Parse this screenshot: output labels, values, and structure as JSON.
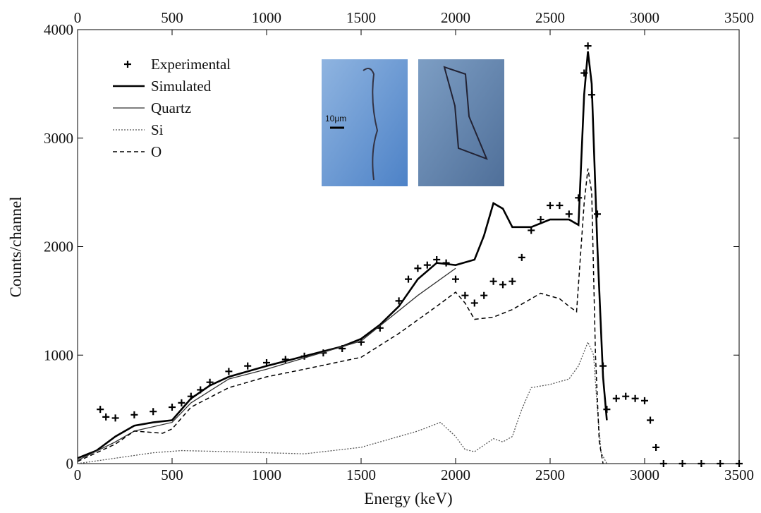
{
  "chart_data": {
    "type": "line",
    "xlabel": "Energy (keV)",
    "ylabel": "Counts/channel",
    "xlim": [
      0,
      3500
    ],
    "ylim": [
      0,
      4000
    ],
    "xticks": [
      0,
      500,
      1000,
      1500,
      2000,
      2500,
      3000,
      3500
    ],
    "yticks": [
      0,
      1000,
      2000,
      3000,
      4000
    ],
    "inset_scale_label": "10µm",
    "series": [
      {
        "name": "Experimental",
        "style": "marker",
        "color": "#000000",
        "x": [
          120,
          150,
          200,
          300,
          400,
          500,
          550,
          600,
          650,
          700,
          800,
          900,
          1000,
          1100,
          1200,
          1300,
          1400,
          1500,
          1600,
          1700,
          1750,
          1800,
          1850,
          1900,
          1950,
          2000,
          2050,
          2100,
          2150,
          2200,
          2250,
          2300,
          2350,
          2400,
          2450,
          2500,
          2550,
          2600,
          2650,
          2680,
          2700,
          2720,
          2750,
          2780,
          2800,
          2850,
          2900,
          2950,
          3000,
          3030,
          3060,
          3100,
          3200,
          3300,
          3400,
          3500
        ],
        "values": [
          500,
          430,
          420,
          450,
          480,
          520,
          560,
          620,
          680,
          750,
          850,
          900,
          930,
          960,
          990,
          1020,
          1060,
          1120,
          1250,
          1500,
          1700,
          1800,
          1830,
          1880,
          1850,
          1700,
          1550,
          1480,
          1550,
          1680,
          1650,
          1680,
          1900,
          2150,
          2250,
          2380,
          2380,
          2300,
          2450,
          3600,
          3850,
          3400,
          2300,
          900,
          500,
          600,
          620,
          600,
          580,
          400,
          150,
          0,
          0,
          0,
          0,
          0
        ]
      },
      {
        "name": "Simulated",
        "style": "thick",
        "color": "#000000",
        "x": [
          0,
          100,
          200,
          300,
          400,
          500,
          600,
          700,
          800,
          1000,
          1200,
          1400,
          1500,
          1600,
          1700,
          1800,
          1900,
          2000,
          2100,
          2150,
          2200,
          2250,
          2300,
          2400,
          2500,
          2600,
          2650,
          2680,
          2700,
          2720,
          2750,
          2780,
          2800
        ],
        "values": [
          50,
          120,
          250,
          350,
          380,
          400,
          600,
          720,
          800,
          900,
          990,
          1080,
          1150,
          1280,
          1450,
          1700,
          1850,
          1830,
          1880,
          2100,
          2400,
          2350,
          2180,
          2180,
          2250,
          2250,
          2200,
          3400,
          3800,
          3500,
          2000,
          800,
          400
        ]
      },
      {
        "name": "Quartz",
        "style": "solid",
        "color": "#333333",
        "x": [
          0,
          200,
          300,
          500,
          600,
          800,
          1000,
          1500,
          1800,
          2000
        ],
        "values": [
          30,
          200,
          300,
          380,
          560,
          780,
          870,
          1130,
          1550,
          1800
        ]
      },
      {
        "name": "Si",
        "style": "dotted",
        "color": "#555555",
        "x": [
          0,
          200,
          400,
          550,
          800,
          1200,
          1500,
          1800,
          1920,
          2000,
          2050,
          2100,
          2200,
          2250,
          2300,
          2350,
          2400,
          2500,
          2600,
          2650,
          2700,
          2730,
          2750,
          2770,
          2800
        ],
        "values": [
          0,
          50,
          100,
          120,
          110,
          90,
          150,
          300,
          380,
          250,
          130,
          110,
          230,
          200,
          250,
          500,
          700,
          730,
          780,
          900,
          1120,
          1000,
          500,
          100,
          0
        ]
      },
      {
        "name": "O",
        "style": "dashed",
        "color": "#000000",
        "x": [
          0,
          200,
          300,
          450,
          500,
          600,
          800,
          1000,
          1200,
          1500,
          1700,
          1900,
          2000,
          2050,
          2100,
          2200,
          2300,
          2450,
          2550,
          2600,
          2640,
          2680,
          2700,
          2720,
          2740,
          2760,
          2780
        ],
        "values": [
          20,
          180,
          300,
          280,
          320,
          520,
          700,
          800,
          870,
          980,
          1200,
          1450,
          1580,
          1480,
          1330,
          1350,
          1420,
          1570,
          1520,
          1450,
          1400,
          2400,
          2720,
          2500,
          1000,
          200,
          0
        ]
      }
    ]
  }
}
